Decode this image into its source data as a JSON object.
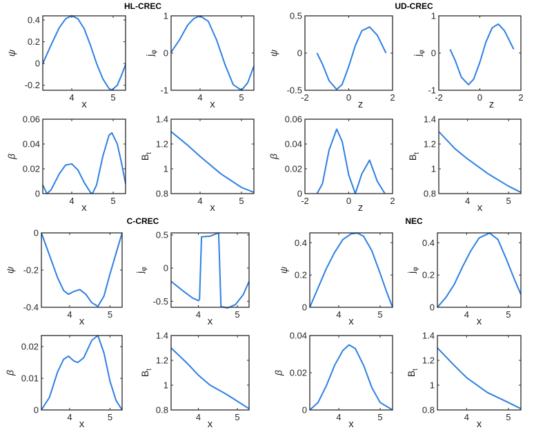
{
  "chart_data": [
    {
      "type": "line",
      "group": "HL-CREC",
      "title": "HL-CREC",
      "xlabel": "x",
      "ylabel": {
        "main": "ψ",
        "sub": "",
        "italic": true
      },
      "xlim": [
        3.3,
        5.3
      ],
      "ylim": [
        -0.246,
        0.438
      ],
      "xticks": [
        4,
        5
      ],
      "yticks": [
        -0.2,
        0,
        0.2,
        0.4
      ],
      "ytick_labels": [
        "-0.2",
        "0",
        "0.2",
        "0.4"
      ],
      "x": [
        3.3,
        3.5,
        3.7,
        3.85,
        4.0,
        4.15,
        4.3,
        4.45,
        4.6,
        4.75,
        4.9,
        4.97,
        5.1,
        5.2,
        5.3
      ],
      "y": [
        0.0,
        0.17,
        0.33,
        0.41,
        0.44,
        0.41,
        0.32,
        0.17,
        0.0,
        -0.14,
        -0.23,
        -0.245,
        -0.2,
        -0.11,
        -0.01
      ]
    },
    {
      "type": "line",
      "group": "HL-CREC",
      "xlabel": "x",
      "ylabel": {
        "main": "j",
        "sub": "φ"
      },
      "xlim": [
        3.3,
        5.3
      ],
      "ylim": [
        -1,
        1
      ],
      "xticks": [
        4,
        5
      ],
      "yticks": [
        -1,
        0,
        1
      ],
      "ytick_labels": [
        "-1",
        "0",
        "1"
      ],
      "x": [
        3.3,
        3.5,
        3.7,
        3.85,
        4.0,
        4.2,
        4.4,
        4.6,
        4.8,
        5.0,
        5.15,
        5.3
      ],
      "y": [
        0.02,
        0.35,
        0.75,
        0.93,
        1.0,
        0.85,
        0.35,
        -0.3,
        -0.85,
        -1.0,
        -0.8,
        -0.35
      ]
    },
    {
      "type": "line",
      "group": "HL-CREC",
      "xlabel": "x",
      "ylabel": {
        "main": "β",
        "sub": "",
        "italic": true
      },
      "xlim": [
        3.3,
        5.3
      ],
      "ylim": [
        0,
        0.06
      ],
      "xticks": [
        4,
        5
      ],
      "yticks": [
        0,
        0.02,
        0.04,
        0.06
      ],
      "ytick_labels": [
        "0",
        "0.02",
        "0.04",
        "0.06"
      ],
      "x": [
        3.3,
        3.4,
        3.5,
        3.7,
        3.85,
        4.0,
        4.15,
        4.3,
        4.45,
        4.5,
        4.6,
        4.75,
        4.9,
        4.97,
        5.1,
        5.2,
        5.3
      ],
      "y": [
        0.007,
        0.0,
        0.003,
        0.016,
        0.023,
        0.024,
        0.019,
        0.009,
        0.001,
        0.0,
        0.007,
        0.03,
        0.047,
        0.049,
        0.04,
        0.025,
        0.008
      ]
    },
    {
      "type": "line",
      "group": "HL-CREC",
      "xlabel": "x",
      "ylabel": {
        "main": "B",
        "sub": "t"
      },
      "xlim": [
        3.3,
        5.3
      ],
      "ylim": [
        0.8,
        1.4
      ],
      "xticks": [
        4,
        5
      ],
      "yticks": [
        0.8,
        1,
        1.2,
        1.4
      ],
      "ytick_labels": [
        "0.8",
        "1",
        "1.2",
        "1.4"
      ],
      "x": [
        3.3,
        3.7,
        4.0,
        4.5,
        5.0,
        5.3
      ],
      "y": [
        1.3,
        1.19,
        1.1,
        0.96,
        0.85,
        0.81
      ]
    },
    {
      "type": "line",
      "group": "UD-CREC",
      "title": "UD-CREC",
      "xlabel": "z",
      "ylabel": {
        "main": "ψ",
        "sub": "",
        "italic": true
      },
      "xlim": [
        -2,
        2
      ],
      "ylim": [
        -0.5,
        0.5
      ],
      "xticks": [
        -2,
        0,
        2
      ],
      "yticks": [
        -0.5,
        0,
        0.5
      ],
      "ytick_labels": [
        "-0.5",
        "0",
        "0.5"
      ],
      "x": [
        -1.45,
        -1.2,
        -0.9,
        -0.55,
        -0.3,
        0,
        0.3,
        0.6,
        0.95,
        1.3,
        1.7
      ],
      "y": [
        0.0,
        -0.15,
        -0.37,
        -0.49,
        -0.42,
        -0.18,
        0.1,
        0.3,
        0.35,
        0.24,
        0.0
      ]
    },
    {
      "type": "line",
      "group": "UD-CREC",
      "xlabel": "z",
      "ylabel": {
        "main": "j",
        "sub": "φ"
      },
      "xlim": [
        -2,
        2
      ],
      "ylim": [
        -1,
        1
      ],
      "xticks": [
        -2,
        0,
        2
      ],
      "yticks": [
        -1,
        0,
        1
      ],
      "ytick_labels": [
        "-1",
        "0",
        "1"
      ],
      "x": [
        -1.45,
        -1.2,
        -0.9,
        -0.55,
        -0.3,
        0,
        0.3,
        0.6,
        0.9,
        1.2,
        1.65
      ],
      "y": [
        0.1,
        -0.2,
        -0.65,
        -0.85,
        -0.7,
        -0.25,
        0.3,
        0.68,
        0.78,
        0.6,
        0.1
      ]
    },
    {
      "type": "line",
      "group": "UD-CREC",
      "xlabel": "z",
      "ylabel": {
        "main": "β",
        "sub": "",
        "italic": true
      },
      "xlim": [
        -2,
        2
      ],
      "ylim": [
        0,
        0.06
      ],
      "xticks": [
        -2,
        0,
        2
      ],
      "yticks": [
        0,
        0.02,
        0.04,
        0.06
      ],
      "ytick_labels": [
        "0",
        "0.02",
        "0.04",
        "0.06"
      ],
      "x": [
        -1.45,
        -1.2,
        -0.9,
        -0.55,
        -0.3,
        0,
        0.3,
        0.6,
        0.95,
        1.3,
        1.65
      ],
      "y": [
        0,
        0.008,
        0.035,
        0.052,
        0.042,
        0.015,
        0.0,
        0.016,
        0.027,
        0.01,
        0.0
      ]
    },
    {
      "type": "line",
      "group": "UD-CREC",
      "xlabel": "x",
      "ylabel": {
        "main": "B",
        "sub": "t"
      },
      "xlim": [
        3.3,
        5.3
      ],
      "ylim": [
        0.8,
        1.4
      ],
      "xticks": [
        4,
        5
      ],
      "yticks": [
        0.8,
        1,
        1.2,
        1.4
      ],
      "ytick_labels": [
        "0.8",
        "1",
        "1.2",
        "1.4"
      ],
      "x": [
        3.3,
        3.7,
        4.0,
        4.5,
        5.0,
        5.3
      ],
      "y": [
        1.3,
        1.16,
        1.08,
        0.96,
        0.86,
        0.81
      ]
    },
    {
      "type": "line",
      "group": "C-CREC",
      "title": "C-CREC",
      "xlabel": "x",
      "ylabel": {
        "main": "ψ",
        "sub": "",
        "italic": true
      },
      "xlim": [
        3.3,
        5.3
      ],
      "ylim": [
        -0.4,
        0
      ],
      "xticks": [
        4,
        5
      ],
      "yticks": [
        -0.4,
        -0.2,
        0
      ],
      "ytick_labels": [
        "-0.4",
        "-0.2",
        "0"
      ],
      "x": [
        3.3,
        3.5,
        3.7,
        3.85,
        3.97,
        4.1,
        4.25,
        4.4,
        4.55,
        4.7,
        4.85,
        5.0,
        5.15,
        5.3
      ],
      "y": [
        0,
        -0.12,
        -0.24,
        -0.31,
        -0.33,
        -0.315,
        -0.305,
        -0.33,
        -0.375,
        -0.395,
        -0.34,
        -0.22,
        -0.11,
        0
      ]
    },
    {
      "type": "line",
      "group": "C-CREC",
      "xlabel": "x",
      "ylabel": {
        "main": "j",
        "sub": "φ"
      },
      "xlim": [
        3.3,
        5.3
      ],
      "ylim": [
        -0.59,
        0.53
      ],
      "xticks": [
        4,
        5
      ],
      "yticks": [
        -0.5,
        0,
        0.5
      ],
      "ytick_labels": [
        "-0.5",
        "0",
        "0.5"
      ],
      "x": [
        3.3,
        3.6,
        3.85,
        4.0,
        4.03,
        4.08,
        4.3,
        4.52,
        4.58,
        4.75,
        4.95,
        5.15,
        5.3
      ],
      "y": [
        -0.2,
        -0.34,
        -0.45,
        -0.49,
        -0.47,
        0.47,
        0.48,
        0.53,
        -0.58,
        -0.6,
        -0.55,
        -0.4,
        -0.2
      ]
    },
    {
      "type": "line",
      "group": "C-CREC",
      "xlabel": "x",
      "ylabel": {
        "main": "β",
        "sub": "",
        "italic": true
      },
      "xlim": [
        3.3,
        5.3
      ],
      "ylim": [
        0,
        0.0235
      ],
      "xticks": [
        4,
        5
      ],
      "yticks": [
        0,
        0.01,
        0.02
      ],
      "ytick_labels": [
        "0",
        "0.01",
        "0.02"
      ],
      "x": [
        3.3,
        3.5,
        3.7,
        3.85,
        3.97,
        4.1,
        4.2,
        4.35,
        4.55,
        4.7,
        4.85,
        5.0,
        5.15,
        5.3
      ],
      "y": [
        0,
        0.004,
        0.012,
        0.016,
        0.017,
        0.0155,
        0.015,
        0.0165,
        0.022,
        0.0235,
        0.018,
        0.009,
        0.003,
        0
      ]
    },
    {
      "type": "line",
      "group": "C-CREC",
      "xlabel": "x",
      "ylabel": {
        "main": "B",
        "sub": "t"
      },
      "xlim": [
        3.3,
        5.3
      ],
      "ylim": [
        0.8,
        1.4
      ],
      "xticks": [
        4,
        5
      ],
      "yticks": [
        0.8,
        1,
        1.2,
        1.4
      ],
      "ytick_labels": [
        "0.8",
        "1",
        "1.2",
        "1.4"
      ],
      "x": [
        3.3,
        3.7,
        4.0,
        4.3,
        4.7,
        5.0,
        5.3
      ],
      "y": [
        1.3,
        1.18,
        1.08,
        1.0,
        0.93,
        0.87,
        0.81
      ]
    },
    {
      "type": "line",
      "group": "NEC",
      "title": "NEC",
      "xlabel": "x",
      "ylabel": {
        "main": "ψ",
        "sub": "",
        "italic": true
      },
      "xlim": [
        3.3,
        5.3
      ],
      "ylim": [
        0,
        0.461
      ],
      "xticks": [
        4,
        5
      ],
      "yticks": [
        0,
        0.2,
        0.4
      ],
      "ytick_labels": [
        "0",
        "0.2",
        "0.4"
      ],
      "x": [
        3.3,
        3.5,
        3.7,
        3.9,
        4.1,
        4.3,
        4.45,
        4.6,
        4.8,
        5.0,
        5.15,
        5.3
      ],
      "y": [
        0,
        0.12,
        0.24,
        0.34,
        0.42,
        0.455,
        0.46,
        0.44,
        0.35,
        0.21,
        0.1,
        0
      ]
    },
    {
      "type": "line",
      "group": "NEC",
      "xlabel": "x",
      "ylabel": {
        "main": "j",
        "sub": "φ"
      },
      "xlim": [
        3.3,
        5.3
      ],
      "ylim": [
        0,
        0.461
      ],
      "xticks": [
        4,
        5
      ],
      "yticks": [
        0,
        0.2,
        0.4
      ],
      "ytick_labels": [
        "0",
        "0.2",
        "0.4"
      ],
      "x": [
        3.3,
        3.5,
        3.7,
        3.9,
        4.1,
        4.3,
        4.55,
        4.75,
        4.95,
        5.15,
        5.3
      ],
      "y": [
        0,
        0.06,
        0.14,
        0.25,
        0.35,
        0.43,
        0.46,
        0.42,
        0.3,
        0.17,
        0.08
      ]
    },
    {
      "type": "line",
      "group": "NEC",
      "xlabel": "x",
      "ylabel": {
        "main": "β",
        "sub": "",
        "italic": true
      },
      "xlim": [
        3.3,
        5.3
      ],
      "ylim": [
        0,
        0.04
      ],
      "xticks": [
        4,
        5
      ],
      "yticks": [
        0,
        0.02,
        0.04
      ],
      "ytick_labels": [
        "0",
        "0.02",
        "0.04"
      ],
      "x": [
        3.3,
        3.5,
        3.7,
        3.9,
        4.1,
        4.25,
        4.4,
        4.6,
        4.8,
        5.0,
        5.3
      ],
      "y": [
        0,
        0.004,
        0.013,
        0.024,
        0.032,
        0.035,
        0.033,
        0.024,
        0.012,
        0.004,
        0
      ]
    },
    {
      "type": "line",
      "group": "NEC",
      "xlabel": "x",
      "ylabel": {
        "main": "B",
        "sub": "t"
      },
      "xlim": [
        3.3,
        5.3
      ],
      "ylim": [
        0.8,
        1.4
      ],
      "xticks": [
        4,
        5
      ],
      "yticks": [
        0.8,
        1,
        1.2,
        1.4
      ],
      "ytick_labels": [
        "0.8",
        "1",
        "1.2",
        "1.4"
      ],
      "x": [
        3.3,
        3.7,
        4.0,
        4.5,
        5.0,
        5.3
      ],
      "y": [
        1.3,
        1.16,
        1.06,
        0.94,
        0.86,
        0.81
      ]
    }
  ],
  "colors": {
    "line": "#2d7fe3",
    "axes": "#262626"
  }
}
